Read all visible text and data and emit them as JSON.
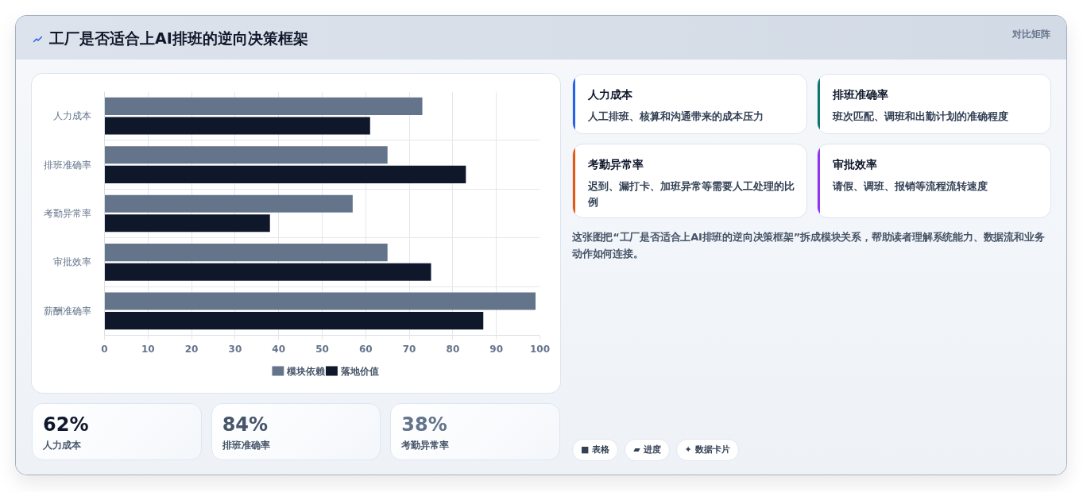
{
  "chart_data": [
    {
      "type": "bar",
      "orientation": "horizontal",
      "title": "工厂是否适合上AI排班的逆向决策框架",
      "annotations": [
        "对比矩阵"
      ],
      "categories": [
        "人力成本",
        "排班准确率",
        "考勤异常率",
        "审批效率",
        "薪酬准确率"
      ],
      "series": [
        {
          "name": "模块依赖",
          "color": "#64748b",
          "values": [
            73,
            65,
            57,
            65,
            99
          ]
        },
        {
          "name": "落地价值",
          "color": "#0f172a",
          "values": [
            61,
            83,
            38,
            75,
            87
          ]
        }
      ],
      "xlim": [
        0,
        100
      ],
      "xticks": [
        0,
        10,
        20,
        30,
        40,
        50,
        60,
        70,
        80,
        90,
        100
      ],
      "grid": true,
      "legend": "bottom"
    },
    {
      "type": "other",
      "annotations": [
        "62%",
        "人力成本",
        "84%",
        "排班准确率",
        "38%",
        "考勤异常率"
      ],
      "colors": [
        "#0f172a",
        "#475569",
        "#64748b"
      ]
    },
    {
      "type": "other",
      "categories": [
        "人力成本",
        "排班准确率",
        "考勤异常率",
        "审批效率"
      ],
      "annotations": [
        "人工排班、核算和沟通带来的成本压力",
        "班次匹配、调班和出勤计划的准确程度",
        "迟到、漏打卡、加班异常等需要人工处理的比例",
        "请假、调班、报销等流程流转速度"
      ]
    },
    {
      "type": "other",
      "annotations": [
        "这张图把“工厂是否适合上AI排班的逆向决策框架”拆成模块关系，帮助读者理解系统能力、数据流和业务动作如何连接。",
        "■ 表格",
        "▰ 进度",
        "✦ 数据卡片"
      ]
    }
  ]
}
